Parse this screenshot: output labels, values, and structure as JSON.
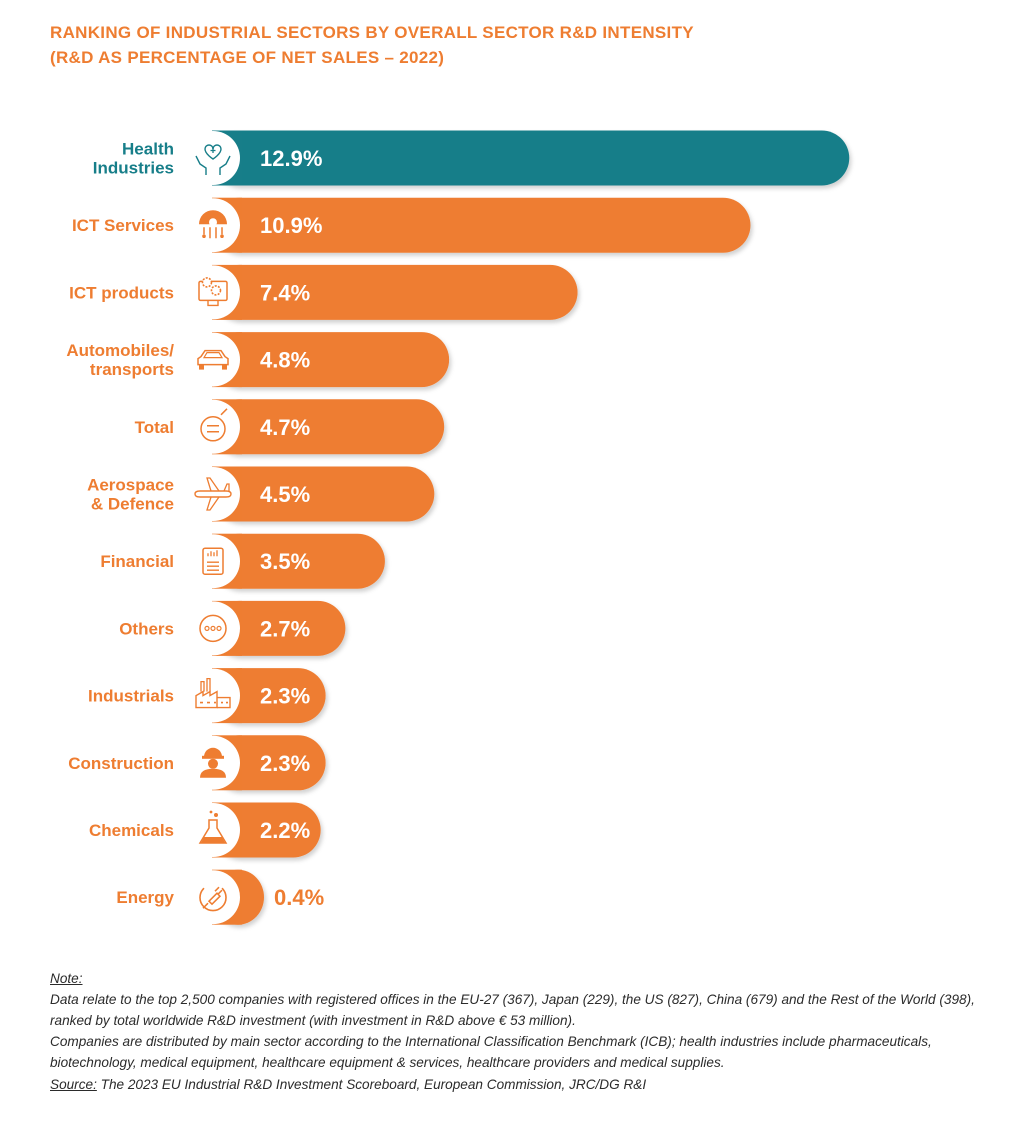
{
  "title": {
    "line1": "RANKING OF INDUSTRIAL SECTORS BY OVERALL SECTOR R&D INTENSITY",
    "line2": "(R&D AS PERCENTAGE OF NET SALES – 2022)"
  },
  "colors": {
    "highlight": "#177e89",
    "bar": "#ee7d31",
    "label": "#ee7d31",
    "highlight_label": "#177e89"
  },
  "chart_data": {
    "type": "bar",
    "orientation": "horizontal",
    "categories": [
      "Health Industries",
      "ICT Services",
      "ICT products",
      "Automobiles/ transports",
      "Total",
      "Aerospace & Defence",
      "Financial",
      "Others",
      "Industrials",
      "Construction",
      "Chemicals",
      "Energy"
    ],
    "values": [
      12.9,
      10.9,
      7.4,
      4.8,
      4.7,
      4.5,
      3.5,
      2.7,
      2.3,
      2.3,
      2.2,
      0.4
    ],
    "value_labels": [
      "12.9%",
      "10.9%",
      "7.4%",
      "4.8%",
      "4.7%",
      "4.5%",
      "3.5%",
      "2.7%",
      "2.3%",
      "2.3%",
      "2.2%",
      "0.4%"
    ],
    "label_lines": [
      [
        "Health",
        "Industries"
      ],
      [
        "ICT Services"
      ],
      [
        "ICT products"
      ],
      [
        "Automobiles/",
        "transports"
      ],
      [
        "Total"
      ],
      [
        "Aerospace",
        "& Defence"
      ],
      [
        "Financial"
      ],
      [
        "Others"
      ],
      [
        "Industrials"
      ],
      [
        "Construction"
      ],
      [
        "Chemicals"
      ],
      [
        "Energy"
      ]
    ],
    "icons": [
      "health-care-hands-icon",
      "cloud-gear-network-icon",
      "computer-gears-icon",
      "car-icon",
      "total-scale-icon",
      "airplane-icon",
      "financial-report-icon",
      "others-dots-icon",
      "factory-icon",
      "construction-worker-icon",
      "chemical-flask-icon",
      "energy-plug-icon"
    ],
    "highlighted_category": "Health Industries",
    "title": "",
    "xlabel": "",
    "ylabel": ""
  },
  "notes": {
    "note_heading": "Note:",
    "note_line1": "Data relate to the top 2,500 companies with registered offices in the EU-27 (367), Japan (229), the US (827), China (679) and the Rest of the World (398), ranked by total worldwide R&D investment (with investment in R&D above € 53 million).",
    "note_line2": "Companies are distributed by main sector according to the International Classification Benchmark (ICB); health industries include pharmaceuticals, biotechnology, medical equipment, healthcare equipment & services, healthcare providers and medical supplies.",
    "source_heading": "Source:",
    "source_text": " The 2023 EU Industrial R&D Investment Scoreboard, European Commission, JRC/DG R&I"
  }
}
